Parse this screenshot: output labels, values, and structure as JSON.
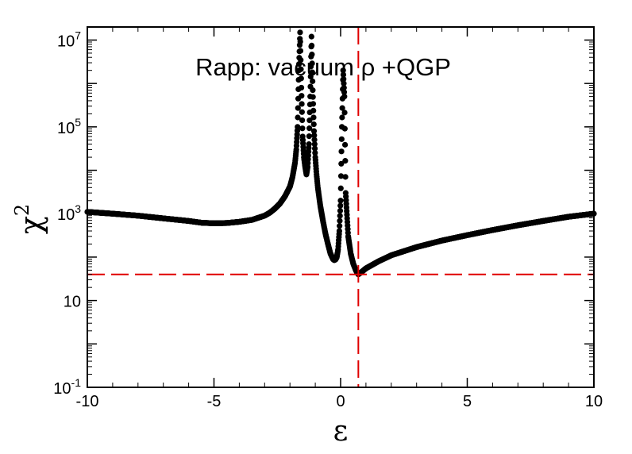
{
  "chart_data": {
    "type": "scatter",
    "title": "",
    "annotation": "Rapp: vacuum ρ +QGP",
    "xlabel": "ε",
    "ylabel": "χ",
    "ylabel_superscript": "2",
    "xscale": "linear",
    "yscale": "log",
    "xlim": [
      -10,
      10
    ],
    "ylim": [
      0.1,
      20000000
    ],
    "x_ticks": [
      -10,
      -5,
      0,
      5,
      10
    ],
    "x_tick_labels": [
      "-10",
      "-5",
      "0",
      "5",
      "10"
    ],
    "y_ticks": [
      {
        "value": 0.1,
        "base": "10",
        "exp": "-1"
      },
      {
        "value": 10,
        "base": "10",
        "exp": ""
      },
      {
        "value": 1000,
        "base": "10",
        "exp": "3"
      },
      {
        "value": 100000,
        "base": "10",
        "exp": "5"
      },
      {
        "value": 10000000,
        "base": "10",
        "exp": "7"
      }
    ],
    "grid": false,
    "legend": "none",
    "marker_color": "#000000",
    "reference_lines": {
      "color": "#e00000",
      "style": "dashed",
      "vertical_x": 0.7,
      "horizontal_y": 40
    },
    "series": [
      {
        "x": [
          -10,
          -9,
          -8,
          -7,
          -6,
          -5.5,
          -5,
          -4.5,
          -4,
          -3.5,
          -3,
          -2.8,
          -2.6,
          -2.4,
          -2.2,
          -2.0,
          -1.9,
          -1.8,
          -1.75,
          -1.7,
          -1.65,
          -1.6,
          -1.55,
          -1.5,
          -1.45,
          -1.4,
          -1.35,
          -1.3,
          -1.25,
          -1.2,
          -1.15,
          -1.1,
          -1.05,
          -1.0,
          -0.95,
          -0.9,
          -0.8,
          -0.7,
          -0.6,
          -0.5,
          -0.4,
          -0.3,
          -0.25,
          -0.2,
          -0.15,
          -0.1,
          -0.05,
          0.0,
          0.05,
          0.1,
          0.15,
          0.2,
          0.3,
          0.4,
          0.5,
          0.6,
          0.65,
          0.7,
          0.8,
          1.0,
          1.5,
          2,
          3,
          4,
          5,
          6,
          7,
          8,
          9,
          10
        ],
        "y": [
          1100,
          1000,
          900,
          780,
          680,
          620,
          600,
          610,
          650,
          720,
          900,
          1050,
          1300,
          1700,
          2500,
          4200,
          7000,
          15000,
          30000,
          100000,
          2000000,
          15000000,
          800000,
          60000,
          20000,
          12000,
          8000,
          12000,
          40000,
          500000,
          12000000,
          700000,
          80000,
          20000,
          8000,
          4000,
          1500,
          700,
          350,
          200,
          120,
          90,
          85,
          88,
          100,
          150,
          400,
          2000,
          100000,
          2000000,
          500000,
          3000,
          300,
          120,
          70,
          50,
          44,
          40,
          44,
          55,
          80,
          110,
          170,
          240,
          320,
          420,
          540,
          680,
          850,
          1000
        ]
      }
    ]
  }
}
